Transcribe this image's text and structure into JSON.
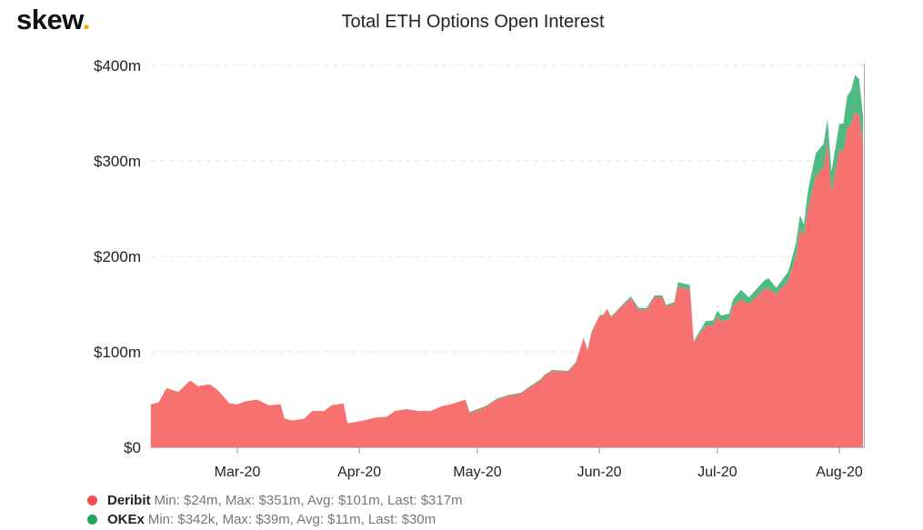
{
  "logo": {
    "text": "skew",
    "dot": "."
  },
  "chart_data": {
    "type": "area",
    "stacked": true,
    "title": "Total ETH Options Open Interest",
    "xlabel": "",
    "ylabel": "",
    "ylim": [
      0,
      400
    ],
    "y_unit": "$m",
    "y_ticks": [
      {
        "value": 0,
        "label": "$0"
      },
      {
        "value": 100,
        "label": "$100m"
      },
      {
        "value": 200,
        "label": "$200m"
      },
      {
        "value": 300,
        "label": "$300m"
      },
      {
        "value": 400,
        "label": "$400m"
      }
    ],
    "x_ticks": [
      {
        "date": "2020-03-01",
        "label": "Mar-20"
      },
      {
        "date": "2020-04-01",
        "label": "Apr-20"
      },
      {
        "date": "2020-05-01",
        "label": "May-20"
      },
      {
        "date": "2020-06-01",
        "label": "Jun-20"
      },
      {
        "date": "2020-07-01",
        "label": "Jul-20"
      },
      {
        "date": "2020-08-01",
        "label": "Aug-20"
      }
    ],
    "grid": "horizontal-dashed",
    "legend_placement": "bottom-left",
    "x": [
      "2020-02-08",
      "2020-02-10",
      "2020-02-12",
      "2020-02-15",
      "2020-02-18",
      "2020-02-20",
      "2020-02-23",
      "2020-02-25",
      "2020-02-28",
      "2020-03-01",
      "2020-03-03",
      "2020-03-06",
      "2020-03-09",
      "2020-03-12",
      "2020-03-13",
      "2020-03-15",
      "2020-03-18",
      "2020-03-20",
      "2020-03-23",
      "2020-03-25",
      "2020-03-28",
      "2020-03-29",
      "2020-04-02",
      "2020-04-05",
      "2020-04-08",
      "2020-04-10",
      "2020-04-13",
      "2020-04-16",
      "2020-04-19",
      "2020-04-22",
      "2020-04-25",
      "2020-04-28",
      "2020-04-29",
      "2020-05-03",
      "2020-05-06",
      "2020-05-09",
      "2020-05-12",
      "2020-05-14",
      "2020-05-17",
      "2020-05-18",
      "2020-05-20",
      "2020-05-24",
      "2020-05-26",
      "2020-05-28",
      "2020-05-29",
      "2020-05-30",
      "2020-06-01",
      "2020-06-02",
      "2020-06-03",
      "2020-06-04",
      "2020-06-07",
      "2020-06-09",
      "2020-06-11",
      "2020-06-13",
      "2020-06-15",
      "2020-06-17",
      "2020-06-18",
      "2020-06-20",
      "2020-06-21",
      "2020-06-24",
      "2020-06-25",
      "2020-06-28",
      "2020-06-30",
      "2020-07-01",
      "2020-07-02",
      "2020-07-04",
      "2020-07-05",
      "2020-07-07",
      "2020-07-09",
      "2020-07-13",
      "2020-07-14",
      "2020-07-16",
      "2020-07-19",
      "2020-07-21",
      "2020-07-22",
      "2020-07-23",
      "2020-07-24",
      "2020-07-26",
      "2020-07-28",
      "2020-07-29",
      "2020-07-30",
      "2020-08-01",
      "2020-08-02",
      "2020-08-03",
      "2020-08-04",
      "2020-08-05",
      "2020-08-06",
      "2020-08-07"
    ],
    "series": [
      {
        "name": "Deribit",
        "color": "#f87171",
        "values": [
          45,
          47,
          62,
          58,
          70,
          64,
          66,
          60,
          46,
          45,
          48,
          50,
          44,
          45,
          30,
          28,
          30,
          38,
          38,
          44,
          46,
          25,
          28,
          31,
          32,
          38,
          40,
          38,
          38,
          43,
          46,
          50,
          36,
          42,
          50,
          54,
          56,
          62,
          70,
          75,
          80,
          79,
          88,
          114,
          101,
          120,
          137,
          138,
          144,
          136,
          149,
          156,
          144,
          144,
          157,
          157,
          147,
          150,
          168,
          165,
          110,
          127,
          128,
          137,
          132,
          134,
          148,
          155,
          150,
          166,
          166,
          161,
          174,
          201,
          228,
          222,
          249,
          284,
          293,
          320,
          267,
          312,
          309,
          334,
          339,
          351,
          348,
          317
        ],
        "stats": "Min: $24m, Max: $351m, Avg: $101m, Last: $317m"
      },
      {
        "name": "OKEx",
        "color": "#4fbb82",
        "values": [
          0,
          0,
          0,
          0,
          0,
          0,
          0,
          0,
          0,
          0,
          0,
          0,
          0,
          0,
          0,
          0,
          0,
          0,
          0,
          0,
          0,
          0,
          0,
          0,
          0,
          0,
          0,
          0,
          0,
          0,
          0,
          0,
          1,
          1,
          1,
          1,
          1,
          1,
          1,
          1,
          1,
          1,
          1,
          1,
          1,
          1,
          1,
          1,
          1,
          1,
          1,
          2,
          2,
          2,
          2,
          2,
          2,
          2,
          5,
          5,
          1,
          5,
          5,
          6,
          6,
          6,
          7,
          10,
          7,
          9,
          11,
          6,
          10,
          13,
          15,
          11,
          19,
          24,
          25,
          24,
          22,
          27,
          30,
          34,
          35,
          39,
          38,
          30
        ],
        "stats": "Min: $342k, Max: $39m, Avg: $11m, Last: $30m"
      }
    ]
  }
}
